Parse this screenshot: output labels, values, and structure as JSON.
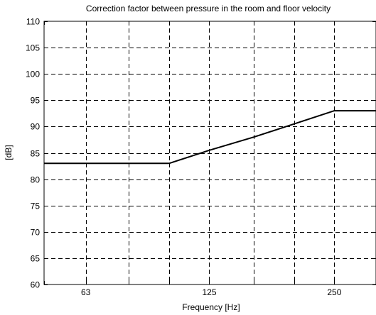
{
  "chart_data": {
    "type": "line",
    "title": "Correction factor between pressure in the room and floor velocity",
    "xlabel": "Frequency [Hz]",
    "ylabel": "[dB]",
    "x_scale": "log",
    "xlim": [
      50,
      315
    ],
    "ylim": [
      60,
      110
    ],
    "x_ticks": [
      50,
      63,
      80,
      100,
      125,
      160,
      200,
      250,
      315
    ],
    "x_tick_labels": [
      "63",
      "125",
      "250"
    ],
    "x_tick_label_values": [
      63,
      125,
      250
    ],
    "y_ticks": [
      60,
      65,
      70,
      75,
      80,
      85,
      90,
      95,
      100,
      105,
      110
    ],
    "y_tick_labels": [
      "60",
      "65",
      "70",
      "75",
      "80",
      "85",
      "90",
      "95",
      "100",
      "105",
      "110"
    ],
    "grid": true,
    "series": [
      {
        "x": [
          50,
          63,
          80,
          100,
          125,
          160,
          200,
          250,
          315
        ],
        "y": [
          83,
          83,
          83,
          83,
          85.5,
          88,
          90.5,
          93,
          93
        ],
        "color": "#000000"
      }
    ]
  }
}
